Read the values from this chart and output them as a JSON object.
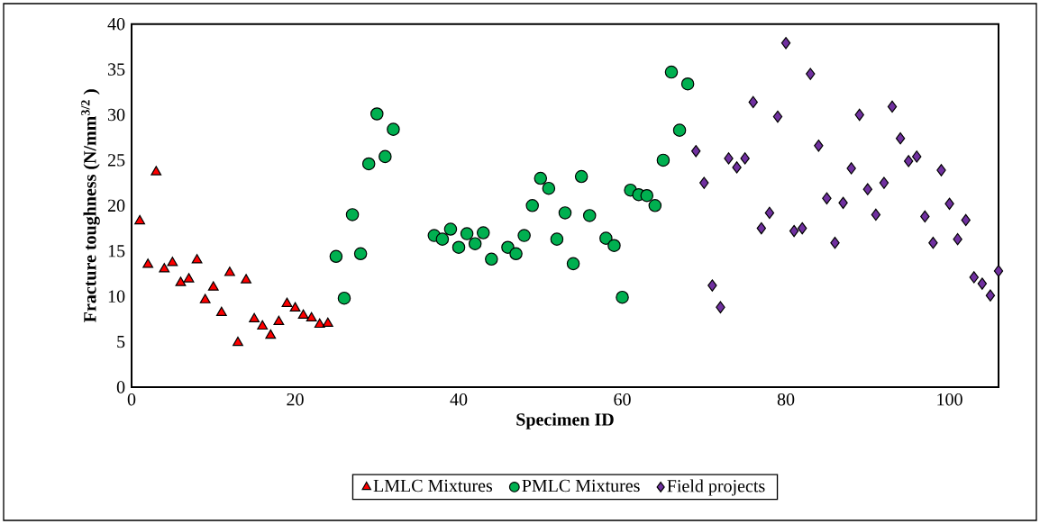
{
  "chart_data": {
    "type": "scatter",
    "xlabel": "Specimen ID",
    "ylabel": "Fracture toughness (N/mm$^{3/2}$ )",
    "xlim": [
      0,
      106
    ],
    "ylim": [
      0,
      40
    ],
    "xticks": [
      0,
      20,
      40,
      60,
      80,
      100
    ],
    "yticks": [
      0,
      5,
      10,
      15,
      20,
      25,
      30,
      35,
      40
    ],
    "grid": false,
    "legend": "bottom",
    "series": [
      {
        "name": "LMLC Mixtures",
        "color": "#ff0000",
        "marker": "triangle",
        "x": [
          1,
          2,
          3,
          4,
          5,
          6,
          7,
          8,
          9,
          10,
          11,
          12,
          13,
          14,
          15,
          16,
          17,
          18,
          19,
          20,
          21,
          22,
          23,
          24
        ],
        "values": [
          18.3,
          13.5,
          23.7,
          13.0,
          13.7,
          11.5,
          11.9,
          14.0,
          9.6,
          11.0,
          8.2,
          12.6,
          4.9,
          11.8,
          7.5,
          6.7,
          5.7,
          7.2,
          9.2,
          8.7,
          7.9,
          7.6,
          6.9,
          7.0
        ]
      },
      {
        "name": "PMLC Mixtures",
        "color": "#00b050",
        "marker": "circle",
        "x": [
          25,
          26,
          27,
          28,
          29,
          30,
          31,
          32,
          37,
          38,
          39,
          40,
          41,
          42,
          43,
          44,
          46,
          47,
          48,
          49,
          50,
          51,
          52,
          53,
          54,
          55,
          56,
          58,
          59,
          60,
          61,
          62,
          63,
          64,
          65,
          66,
          67,
          68
        ],
        "values": [
          14.4,
          9.8,
          19.0,
          14.7,
          24.6,
          30.1,
          25.4,
          28.4,
          16.7,
          16.3,
          17.4,
          15.4,
          16.9,
          15.8,
          17.0,
          14.1,
          15.4,
          14.7,
          16.7,
          20.0,
          23.0,
          21.9,
          16.3,
          19.2,
          13.6,
          23.2,
          18.9,
          16.4,
          15.6,
          9.9,
          21.7,
          21.2,
          21.1,
          20.0,
          25.0,
          34.7,
          28.3,
          33.4
        ]
      },
      {
        "name": "Field projects",
        "color": "#7030a0",
        "marker": "diamond",
        "x": [
          69,
          70,
          71,
          72,
          73,
          74,
          75,
          76,
          77,
          78,
          79,
          80,
          81,
          82,
          83,
          84,
          85,
          86,
          87,
          88,
          89,
          90,
          91,
          92,
          93,
          94,
          95,
          96,
          97,
          98,
          99,
          100,
          101,
          102,
          103,
          104,
          105,
          106
        ],
        "values": [
          26.0,
          22.5,
          11.2,
          8.8,
          25.2,
          24.2,
          25.2,
          31.4,
          17.5,
          19.2,
          29.8,
          37.9,
          17.2,
          17.5,
          34.5,
          26.6,
          20.8,
          15.9,
          20.3,
          24.1,
          30.0,
          21.8,
          19.0,
          22.5,
          30.9,
          27.4,
          24.9,
          25.4,
          18.8,
          15.9,
          23.9,
          20.2,
          16.3,
          18.4,
          12.1,
          11.4,
          10.1,
          12.8
        ]
      }
    ]
  }
}
